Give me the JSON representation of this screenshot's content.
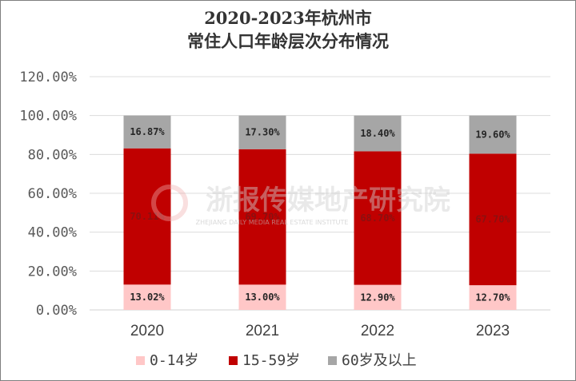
{
  "chart_data": {
    "type": "bar",
    "stacked": true,
    "title_lines": [
      "2020-2023年杭州市",
      "常住人口年龄层次分布情况"
    ],
    "categories": [
      "2020",
      "2021",
      "2022",
      "2023"
    ],
    "series": [
      {
        "name": "0-14岁",
        "color": "#ffc7c7",
        "values": [
          13.02,
          13.0,
          12.9,
          12.7
        ],
        "labels": [
          "13.02%",
          "13.00%",
          "12.90%",
          "12.70%"
        ]
      },
      {
        "name": "15-59岁",
        "color": "#c00000",
        "values": [
          70.11,
          69.7,
          68.7,
          67.7
        ],
        "labels": [
          "70.11%",
          "69.70%",
          "68.70%",
          "67.70%"
        ]
      },
      {
        "name": "60岁及以上",
        "color": "#a6a6a6",
        "values": [
          16.87,
          17.3,
          18.4,
          19.6
        ],
        "labels": [
          "16.87%",
          "17.30%",
          "18.40%",
          "19.60%"
        ]
      }
    ],
    "y_ticks": [
      0,
      20,
      40,
      60,
      80,
      100,
      120
    ],
    "y_tick_labels": [
      "0.00%",
      "20.00%",
      "40.00%",
      "60.00%",
      "80.00%",
      "100.00%",
      "120.00%"
    ],
    "ylim": [
      0,
      120
    ],
    "grid": true,
    "legend_position": "bottom"
  },
  "watermark": {
    "text": "浙报传媒地产研究院",
    "subtext": "ZHEJIANG DAILY MEDIA REAL ESTATE INSTITUTE"
  }
}
